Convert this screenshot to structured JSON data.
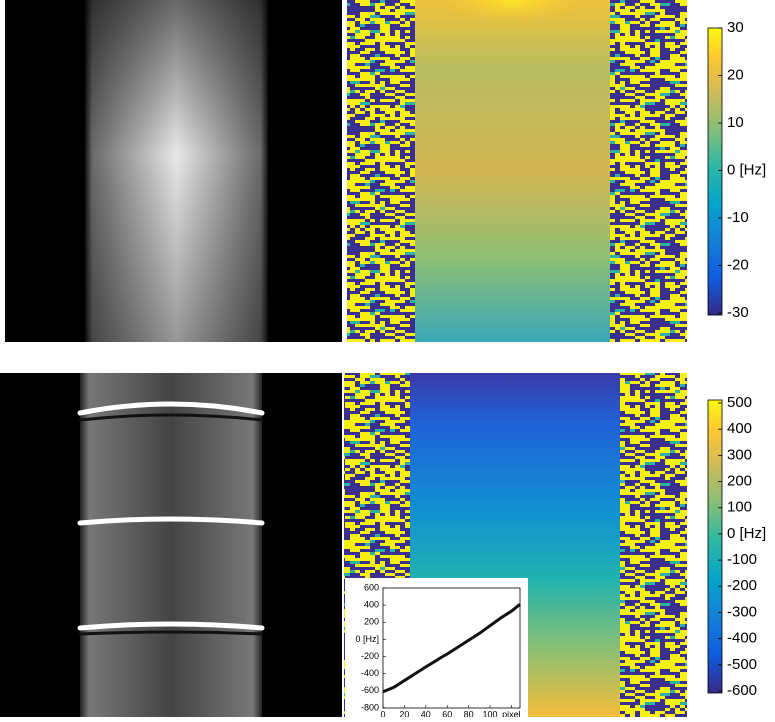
{
  "top_colorbar": {
    "lim": [
      -30,
      30
    ],
    "ticks": [
      30,
      20,
      10,
      {
        "value": 0,
        "label": "0 [Hz]"
      },
      -10,
      -20,
      -30
    ]
  },
  "bottom_colorbar": {
    "lim": [
      -600,
      500
    ],
    "ticks": [
      500,
      400,
      300,
      200,
      100,
      {
        "value": 0,
        "label": "0 [Hz]"
      },
      -100,
      -200,
      -300,
      -400,
      -500,
      -600
    ]
  },
  "inset": {
    "type": "line",
    "color": "#111111",
    "x": [
      0,
      10,
      20,
      30,
      40,
      50,
      55,
      60,
      70,
      80,
      90,
      100,
      110,
      120,
      128
    ],
    "values": [
      -610,
      -560,
      -480,
      -400,
      -320,
      -245,
      -205,
      -170,
      -90,
      -10,
      70,
      160,
      250,
      330,
      410
    ],
    "xlim": [
      0,
      128
    ],
    "ylim": [
      -800,
      600
    ],
    "xticks": [
      0,
      20,
      40,
      60,
      80,
      100,
      {
        "value": 120,
        "label": "pixel"
      }
    ],
    "yticks": [
      600,
      400,
      200,
      {
        "value": 0,
        "label": "0 [Hz]"
      },
      -200,
      -400,
      -600,
      -800
    ]
  }
}
